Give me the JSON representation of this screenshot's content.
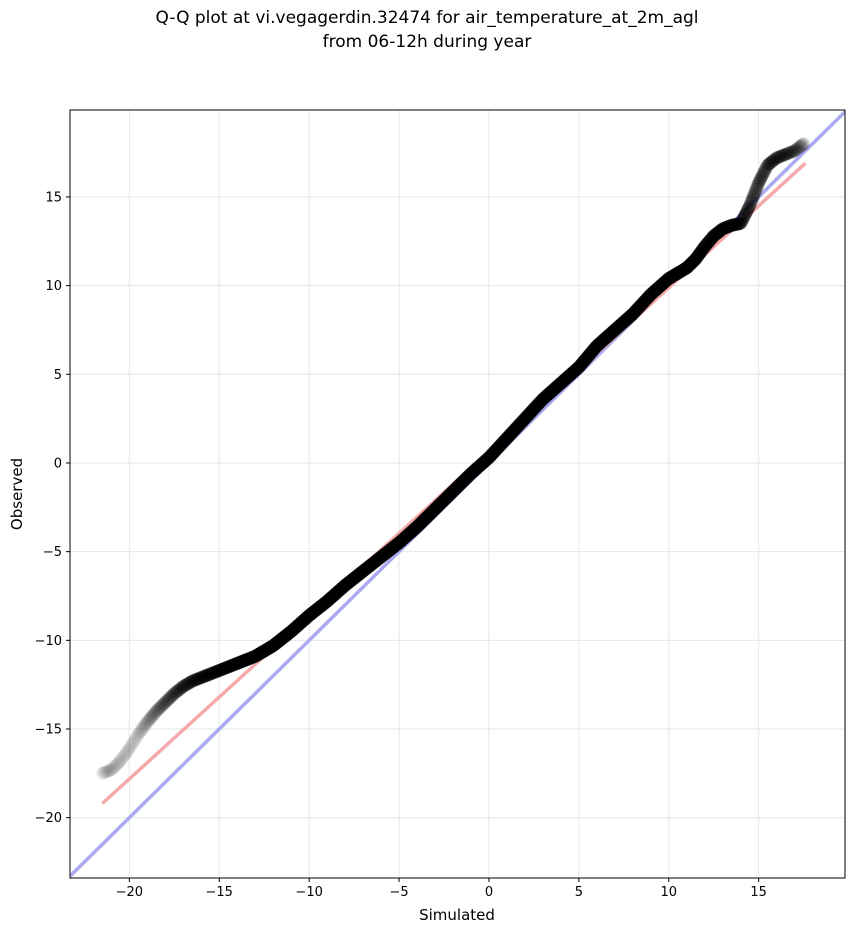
{
  "chart_data": {
    "type": "scatter",
    "title": "Q-Q plot at vi.vegagerdin.32474 for air_temperature_at_2m_agl",
    "subtitle": "from 06-12h during year",
    "xlabel": "Simulated",
    "ylabel": "Observed",
    "xlim": [
      -23.3,
      19.8
    ],
    "ylim": [
      -23.4,
      19.9
    ],
    "xticks": [
      -20,
      -15,
      -10,
      -5,
      0,
      5,
      10,
      15
    ],
    "yticks": [
      -20,
      -15,
      -10,
      -5,
      0,
      5,
      10,
      15
    ],
    "xtick_labels": [
      "−20",
      "−15",
      "−10",
      "−5",
      "0",
      "5",
      "10",
      "15"
    ],
    "ytick_labels": [
      "−20",
      "−15",
      "−10",
      "−5",
      "0",
      "5",
      "10",
      "15"
    ],
    "grid": true,
    "quantile_curve": {
      "x": [
        -21.5,
        -21.0,
        -20.5,
        -20.0,
        -19.5,
        -19.0,
        -18.5,
        -18.0,
        -17.5,
        -17.0,
        -16.5,
        -16.0,
        -15.0,
        -14.0,
        -13.0,
        -12.0,
        -11.0,
        -10.0,
        -9.0,
        -8.0,
        -7.0,
        -6.0,
        -5.0,
        -4.0,
        -3.0,
        -2.0,
        -1.0,
        0.0,
        1.0,
        2.0,
        3.0,
        4.0,
        5.0,
        6.0,
        7.0,
        8.0,
        9.0,
        10.0,
        11.0,
        11.5,
        12.0,
        12.5,
        13.0,
        13.5,
        14.0,
        14.5,
        15.0,
        15.5,
        16.0,
        16.5,
        17.0,
        17.5
      ],
      "y": [
        -17.5,
        -17.3,
        -16.8,
        -16.1,
        -15.3,
        -14.6,
        -14.0,
        -13.5,
        -13.0,
        -12.6,
        -12.3,
        -12.1,
        -11.7,
        -11.3,
        -10.9,
        -10.3,
        -9.5,
        -8.6,
        -7.8,
        -6.9,
        -6.1,
        -5.3,
        -4.5,
        -3.6,
        -2.6,
        -1.6,
        -0.6,
        0.3,
        1.4,
        2.5,
        3.6,
        4.5,
        5.4,
        6.6,
        7.5,
        8.4,
        9.5,
        10.4,
        11.0,
        11.5,
        12.2,
        12.8,
        13.2,
        13.4,
        13.5,
        14.5,
        15.8,
        16.8,
        17.2,
        17.4,
        17.6,
        18.0
      ]
    },
    "reference_lines": [
      {
        "kind": "identity",
        "color": "#aaaaf0",
        "x": [
          -23.3,
          19.8
        ],
        "y": [
          -23.3,
          19.8
        ]
      },
      {
        "kind": "fit",
        "color": "#f4aaaa",
        "x": [
          -21.5,
          17.6
        ],
        "y": [
          -19.2,
          16.9
        ]
      }
    ],
    "colors": {
      "points": "#000000",
      "identity_line": "#aaaaf0",
      "fit_line": "#f4aaaa",
      "grid": "#e6e6e6"
    }
  }
}
